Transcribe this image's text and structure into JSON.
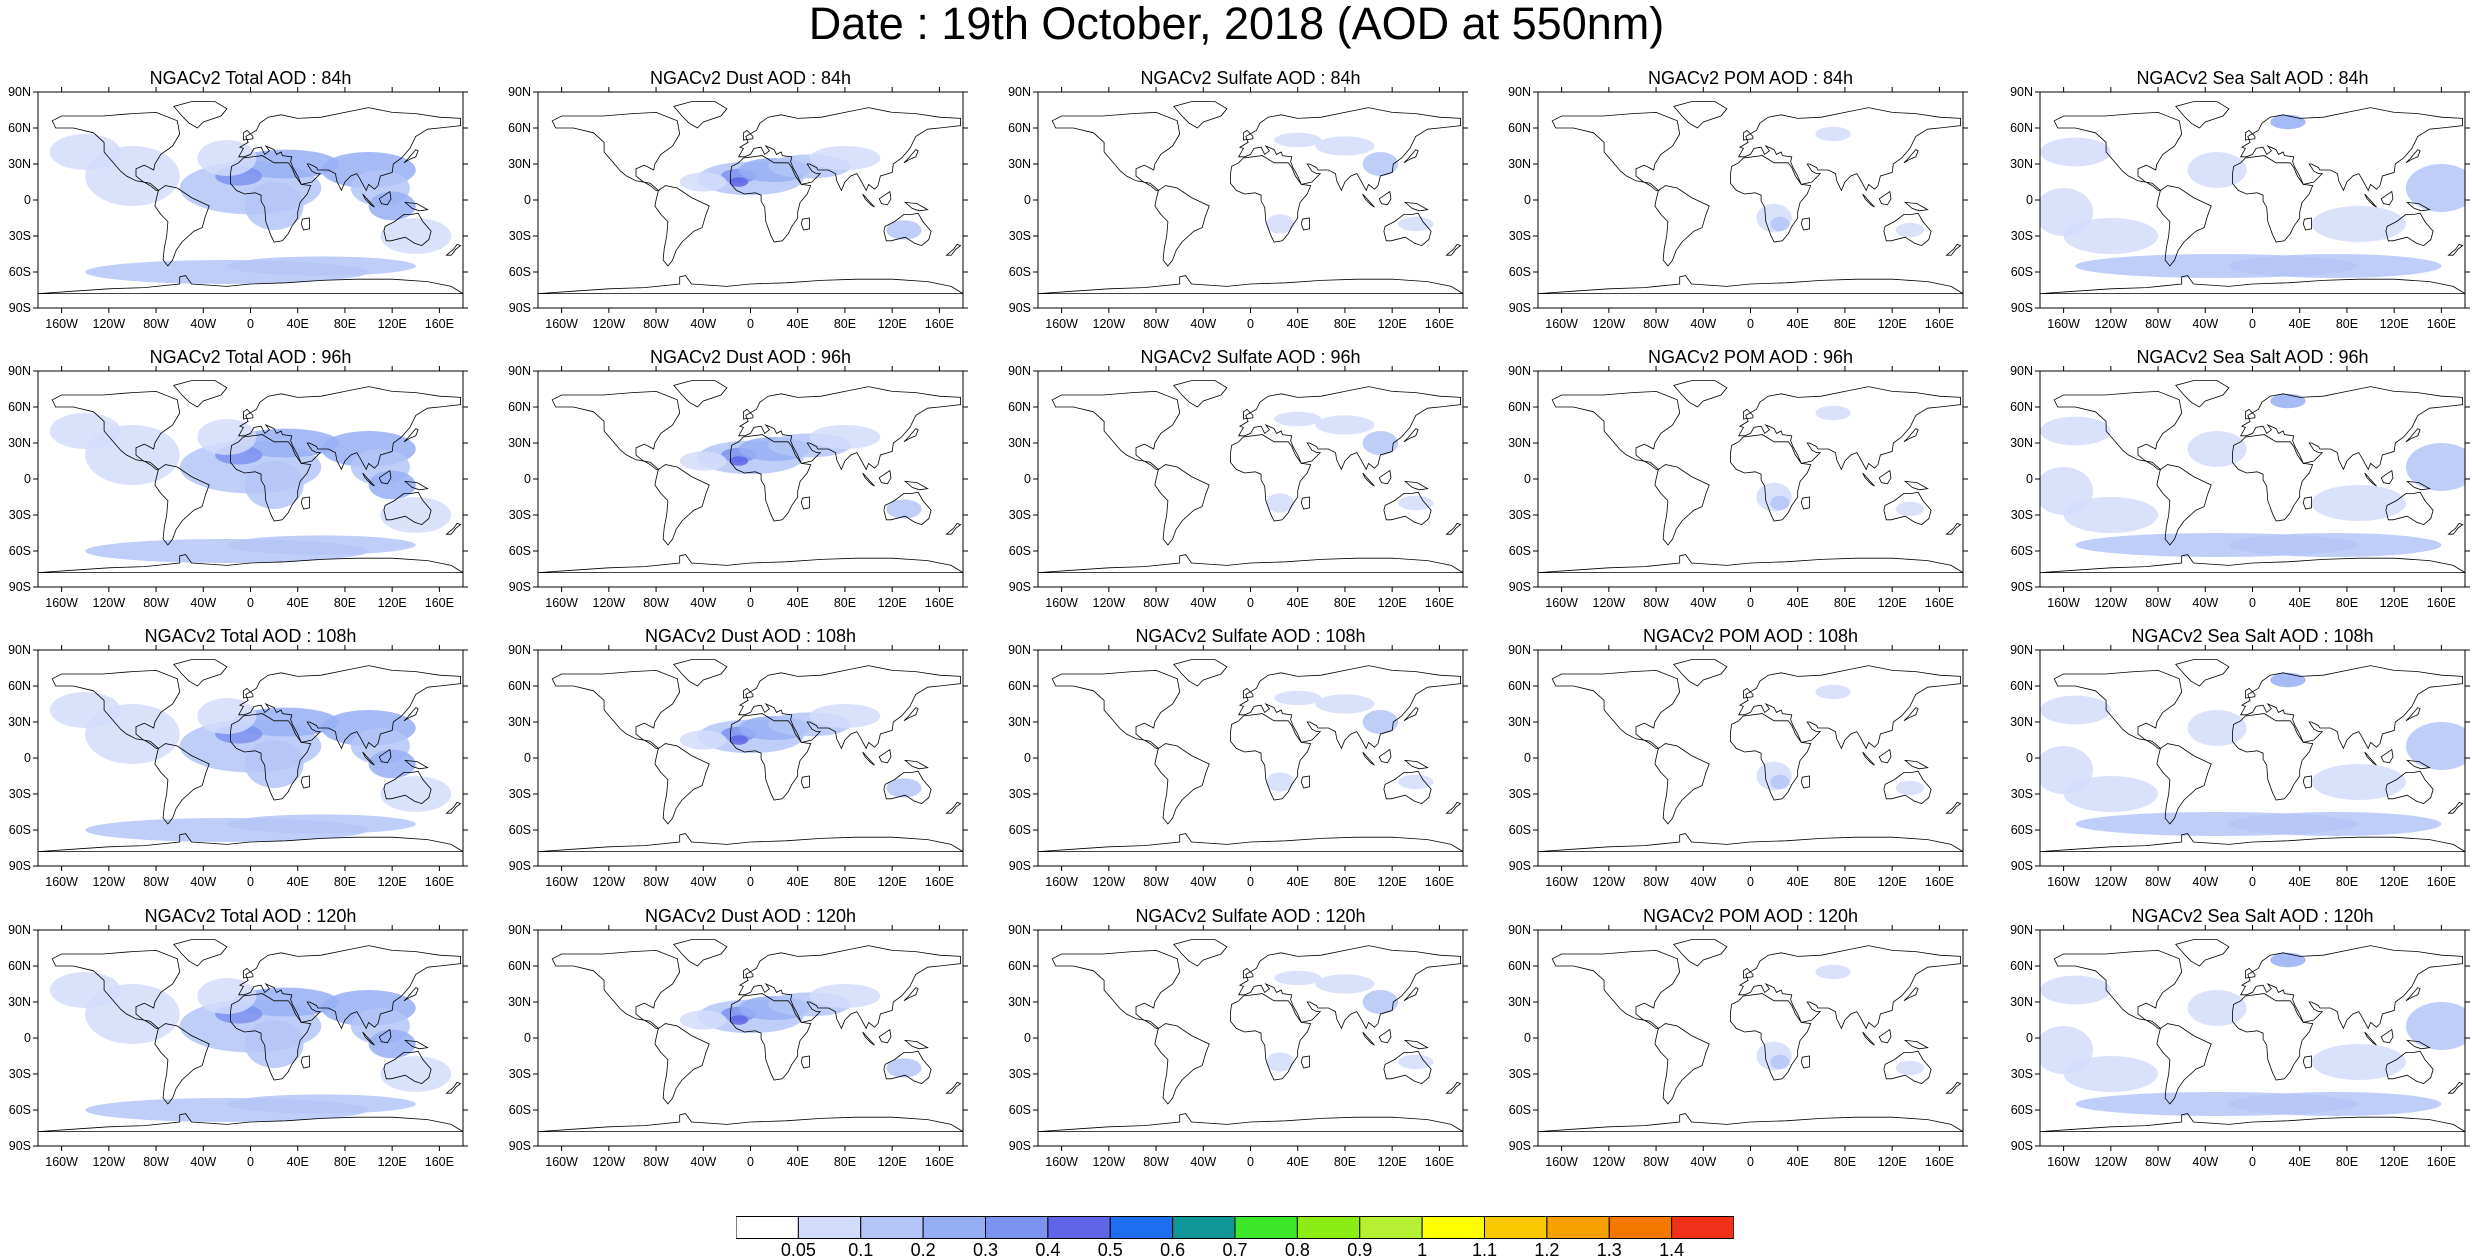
{
  "title": "Date : 19th October, 2018 (AOD at 550nm)",
  "panels": [
    {
      "title": "NGACv2 Total AOD : 84h",
      "species": "total"
    },
    {
      "title": "NGACv2 Dust AOD : 84h",
      "species": "dust"
    },
    {
      "title": "NGACv2 Sulfate AOD : 84h",
      "species": "sulfate"
    },
    {
      "title": "NGACv2 POM AOD : 84h",
      "species": "pom"
    },
    {
      "title": "NGACv2 Sea Salt AOD : 84h",
      "species": "seasalt"
    },
    {
      "title": "NGACv2 Total AOD : 96h",
      "species": "total"
    },
    {
      "title": "NGACv2 Dust AOD : 96h",
      "species": "dust"
    },
    {
      "title": "NGACv2 Sulfate AOD : 96h",
      "species": "sulfate"
    },
    {
      "title": "NGACv2 POM AOD : 96h",
      "species": "pom"
    },
    {
      "title": "NGACv2 Sea Salt AOD : 96h",
      "species": "seasalt"
    },
    {
      "title": "NGACv2 Total AOD : 108h",
      "species": "total"
    },
    {
      "title": "NGACv2 Dust AOD : 108h",
      "species": "dust"
    },
    {
      "title": "NGACv2 Sulfate AOD : 108h",
      "species": "sulfate"
    },
    {
      "title": "NGACv2 POM AOD : 108h",
      "species": "pom"
    },
    {
      "title": "NGACv2 Sea Salt AOD : 108h",
      "species": "seasalt"
    },
    {
      "title": "NGACv2 Total AOD : 120h",
      "species": "total"
    },
    {
      "title": "NGACv2 Dust AOD : 120h",
      "species": "dust"
    },
    {
      "title": "NGACv2 Sulfate AOD : 120h",
      "species": "sulfate"
    },
    {
      "title": "NGACv2 POM AOD : 120h",
      "species": "pom"
    },
    {
      "title": "NGACv2 Sea Salt  AOD : 120h",
      "species": "seasalt"
    }
  ],
  "axes": {
    "lat_labels": [
      "90N",
      "60N",
      "30N",
      "0",
      "30S",
      "60S",
      "90S"
    ],
    "lon_labels": [
      "160W",
      "120W",
      "80W",
      "40W",
      "0",
      "40E",
      "80E",
      "120E",
      "160E"
    ]
  },
  "colorbar": {
    "labels": [
      "0.05",
      "0.1",
      "0.2",
      "0.3",
      "0.4",
      "0.5",
      "0.6",
      "0.7",
      "0.8",
      "0.9",
      "1",
      "1.1",
      "1.2",
      "1.3",
      "1.4"
    ],
    "colors": [
      "#ffffff",
      "#d2dcfa",
      "#b4c6f7",
      "#96aff4",
      "#7c93ef",
      "#5f65e6",
      "#1e6ef0",
      "#0f9696",
      "#3ce628",
      "#8ced14",
      "#b6f032",
      "#ffff00",
      "#fac800",
      "#f8a000",
      "#f47800",
      "#f03018"
    ]
  }
}
